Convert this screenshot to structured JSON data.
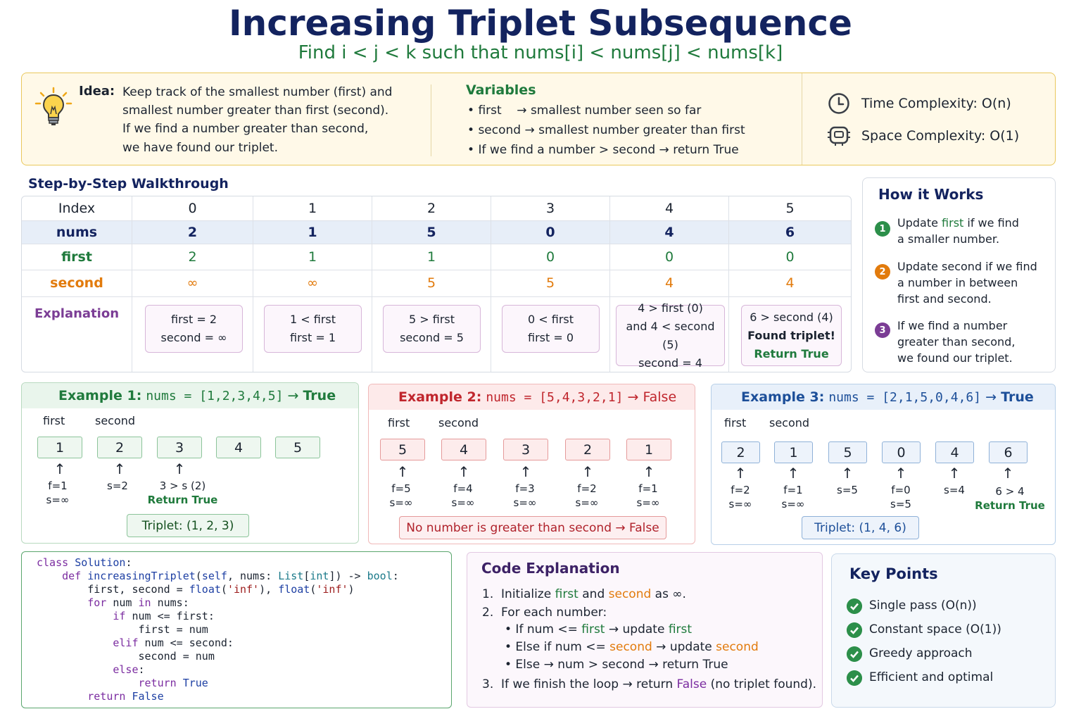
{
  "title": "Increasing Triplet Subsequence",
  "subtitle": "Find i < j < k such that nums[i] < nums[j] < nums[k]",
  "idea": {
    "label": "Idea:",
    "lines": [
      "Keep track of the smallest number (first) and",
      "smallest number greater than first (second).",
      "If we find a number greater than second,",
      "we have found our triplet."
    ]
  },
  "variables": {
    "title": "Variables",
    "items": [
      {
        "name": "first",
        "arrow": "→",
        "desc": "smallest number seen so far"
      },
      {
        "name": "second",
        "arrow": "→",
        "desc": "smallest number greater than first"
      },
      {
        "name": "If we find a number > second",
        "arrow": "→",
        "desc": "return True"
      }
    ]
  },
  "complexity": {
    "time": "Time Complexity:  O(n)",
    "space": "Space Complexity:  O(1)"
  },
  "walkthrough": {
    "title": "Step-by-Step Walkthrough",
    "row_labels": {
      "index": "Index",
      "nums": "nums",
      "first": "first",
      "second": "second",
      "explanation": "Explanation"
    },
    "index": [
      "0",
      "1",
      "2",
      "3",
      "4",
      "5"
    ],
    "nums": [
      "2",
      "1",
      "5",
      "0",
      "4",
      "6"
    ],
    "first": [
      "2",
      "1",
      "1",
      "0",
      "0",
      "0"
    ],
    "second": [
      "∞",
      "∞",
      "5",
      "5",
      "4",
      "4"
    ],
    "explanations": [
      [
        "first  =  2",
        "second = ∞"
      ],
      [
        "1  <  first",
        "first  =  1"
      ],
      [
        "5  >  first",
        "second  =  5"
      ],
      [
        "0  <  first",
        "first  =  0"
      ],
      [
        "4  >  first (0)",
        "and 4 < second (5)",
        "second  =  4"
      ],
      [
        "6  >  second (4)",
        "Found triplet!",
        "Return True"
      ]
    ]
  },
  "how_it_works": {
    "title": "How it Works",
    "steps": [
      {
        "num": "1",
        "pre": "Update ",
        "hl": "first",
        "post": " if we find",
        "rest": [
          "a smaller number."
        ]
      },
      {
        "num": "2",
        "pre": "Update second if we find",
        "hl": "",
        "post": "",
        "rest": [
          "a number in between",
          "first and second."
        ]
      },
      {
        "num": "3",
        "pre": "If we find a number",
        "hl": "",
        "post": "",
        "rest": [
          "greater than second,",
          "we found our triplet."
        ]
      }
    ]
  },
  "examples": [
    {
      "label": "Example 1:",
      "expr": "nums = [1,2,3,4,5]",
      "arrow": "→",
      "result": "True",
      "first_label": "first",
      "second_label": "second",
      "values": [
        "1",
        "2",
        "3",
        "4",
        "5"
      ],
      "notes": [
        [
          "f=1",
          "s=∞"
        ],
        [
          "s=2"
        ],
        [
          "3 > s (2)",
          "Return True"
        ]
      ],
      "summary": "Triplet: (1, 2, 3)"
    },
    {
      "label": "Example 2:",
      "expr": "nums = [5,4,3,2,1]",
      "arrow": "→",
      "result": "False",
      "first_label": "first",
      "second_label": "second",
      "values": [
        "5",
        "4",
        "3",
        "2",
        "1"
      ],
      "notes": [
        [
          "f=5",
          "s=∞"
        ],
        [
          "f=4",
          "s=∞"
        ],
        [
          "f=3",
          "s=∞"
        ],
        [
          "f=2",
          "s=∞"
        ],
        [
          "f=1",
          "s=∞"
        ]
      ],
      "summary": "No number is greater than second → False"
    },
    {
      "label": "Example 3:",
      "expr": "nums = [2,1,5,0,4,6]",
      "arrow": "→",
      "result": "True",
      "first_label": "first",
      "second_label": "second",
      "values": [
        "2",
        "1",
        "5",
        "0",
        "4",
        "6"
      ],
      "notes": [
        [
          "f=2",
          "s=∞"
        ],
        [
          "f=1",
          "s=∞"
        ],
        [
          "s=5"
        ],
        [
          "f=0",
          "s=5"
        ],
        [
          "s=4"
        ],
        [
          "6 > 4",
          "Return True"
        ]
      ],
      "summary": "Triplet: (1, 4, 6)"
    }
  ],
  "code_explanation": {
    "title": "Code Explanation",
    "l1": {
      "n": "1.",
      "a": "Initialize ",
      "b": "first",
      "c": " and ",
      "d": "second",
      "e": " as ∞."
    },
    "l2": {
      "n": "2.",
      "a": "For each number:"
    },
    "b1": {
      "a": "• If num <= ",
      "b": "first",
      "c": " → update ",
      "d": "first"
    },
    "b2": {
      "a": "• Else if num <= ",
      "b": "second",
      "c": " → update ",
      "d": "second"
    },
    "b3": {
      "a": "• Else → num > second → return True"
    },
    "l3": {
      "n": "3.",
      "a": "If we finish the loop → return ",
      "b": "False",
      "c": " (no triplet found)."
    }
  },
  "key_points": {
    "title": "Key Points",
    "items": [
      "Single pass (O(n))",
      "Constant space (O(1))",
      "Greedy approach",
      "Efficient and optimal"
    ]
  },
  "colors": {
    "navy": "#13235f",
    "green": "#1f7a3c",
    "orange": "#e27b0d",
    "purple": "#7b2ca0",
    "red": "#c0262d",
    "blue": "#1d4f99"
  }
}
